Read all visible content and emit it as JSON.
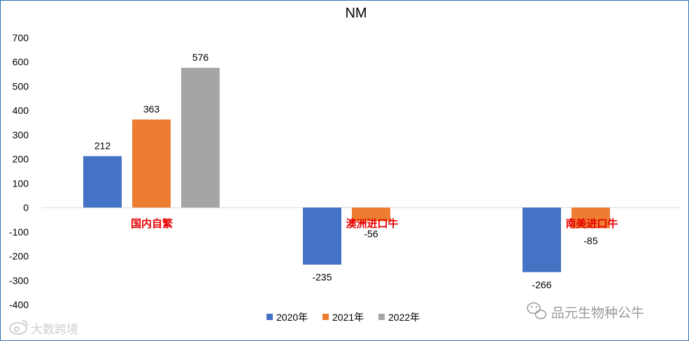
{
  "chart_data": {
    "type": "bar",
    "title": "NM",
    "categories": [
      "国内自繁",
      "澳洲进口牛",
      "南美进口牛"
    ],
    "series": [
      {
        "name": "2020年",
        "color": "#4472c4",
        "values": [
          212,
          -235,
          -266
        ]
      },
      {
        "name": "2021年",
        "color": "#ed7d31",
        "values": [
          363,
          -56,
          -85
        ]
      },
      {
        "name": "2022年",
        "color": "#a5a5a5",
        "values": [
          576,
          null,
          null
        ]
      }
    ],
    "ylim": [
      -400,
      700
    ],
    "yticks": [
      700,
      600,
      500,
      400,
      300,
      200,
      100,
      0,
      -100,
      -200,
      -300,
      -400
    ],
    "xlabel": "",
    "ylabel": "",
    "grid": false,
    "legend_position": "bottom",
    "category_label_color": "#e60000"
  },
  "watermarks": {
    "right": "品元生物种公牛",
    "left": "大数跨境",
    "right_icon": "wechat-icon",
    "left_icon": "weibo-icon"
  }
}
